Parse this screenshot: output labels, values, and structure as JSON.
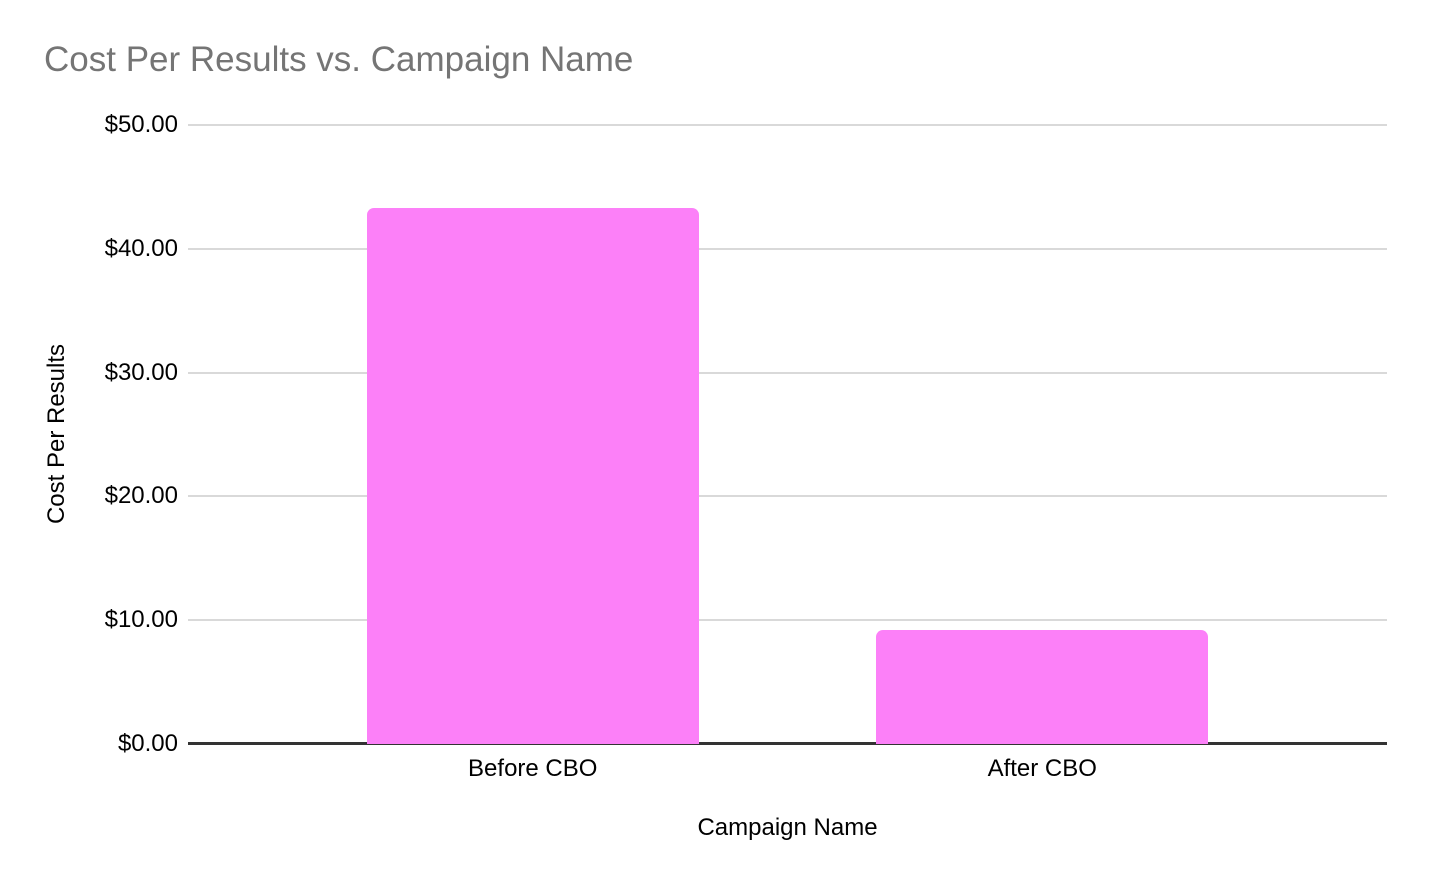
{
  "chart_data": {
    "type": "bar",
    "title": "Cost Per Results vs. Campaign Name",
    "xlabel": "Campaign Name",
    "ylabel": "Cost Per Results",
    "categories": [
      "Before CBO",
      "After CBO"
    ],
    "values": [
      43.3,
      9.2
    ],
    "ylim": [
      0,
      50
    ],
    "yticks": [
      {
        "value": 0,
        "label": "$0.00"
      },
      {
        "value": 10,
        "label": "$10.00"
      },
      {
        "value": 20,
        "label": "$20.00"
      },
      {
        "value": 30,
        "label": "$30.00"
      },
      {
        "value": 40,
        "label": "$40.00"
      },
      {
        "value": 50,
        "label": "$50.00"
      }
    ],
    "grid": "horizontal gridlines on",
    "legend": "none"
  },
  "colors": {
    "bar": "#fc80f8",
    "title_text": "#757575",
    "axis_text": "#000000",
    "gridline": "#d9d9d9",
    "baseline": "#333333",
    "background": "#ffffff"
  }
}
